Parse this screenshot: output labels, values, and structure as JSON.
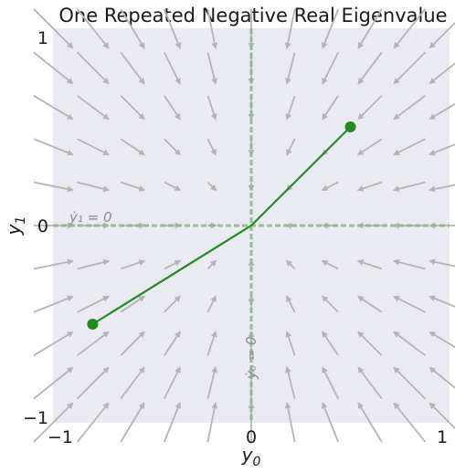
{
  "chart_data": {
    "type": "line",
    "title": "One Repeated Negative Real Eigenvalue",
    "xlabel_base": "y",
    "xlabel_sub": "0",
    "ylabel_base": "y",
    "ylabel_sub": "1",
    "xlim": [
      -1,
      1
    ],
    "ylim": [
      -1,
      1
    ],
    "xticks": [
      {
        "value": -1,
        "label": "−1"
      },
      {
        "value": 0,
        "label": "0"
      },
      {
        "value": 1,
        "label": "1"
      }
    ],
    "yticks": [
      {
        "value": 1,
        "label": "1"
      },
      {
        "value": 0,
        "label": "0"
      },
      {
        "value": -1,
        "label": "−1"
      }
    ],
    "grid": true,
    "vector_field": {
      "lambda": -1,
      "n": 11
    },
    "nullclines": [
      {
        "orientation": "horizontal",
        "label": "ẏ₁ = 0",
        "color": "#8fb98f"
      },
      {
        "orientation": "vertical",
        "label": "ẏ₀ = 0",
        "color": "#8fb98f"
      }
    ],
    "trajectories": [
      {
        "start": [
          0.5,
          0.5
        ],
        "end": [
          0,
          0
        ],
        "color": "#228b22"
      },
      {
        "start": [
          -0.8,
          -0.5
        ],
        "end": [
          0,
          0
        ],
        "color": "#228b22"
      }
    ],
    "colors": {
      "background": "#eaeaf2",
      "arrow": "#b4b4b4",
      "trajectory": "#228b22",
      "nullcline": "#8fb98f"
    }
  }
}
